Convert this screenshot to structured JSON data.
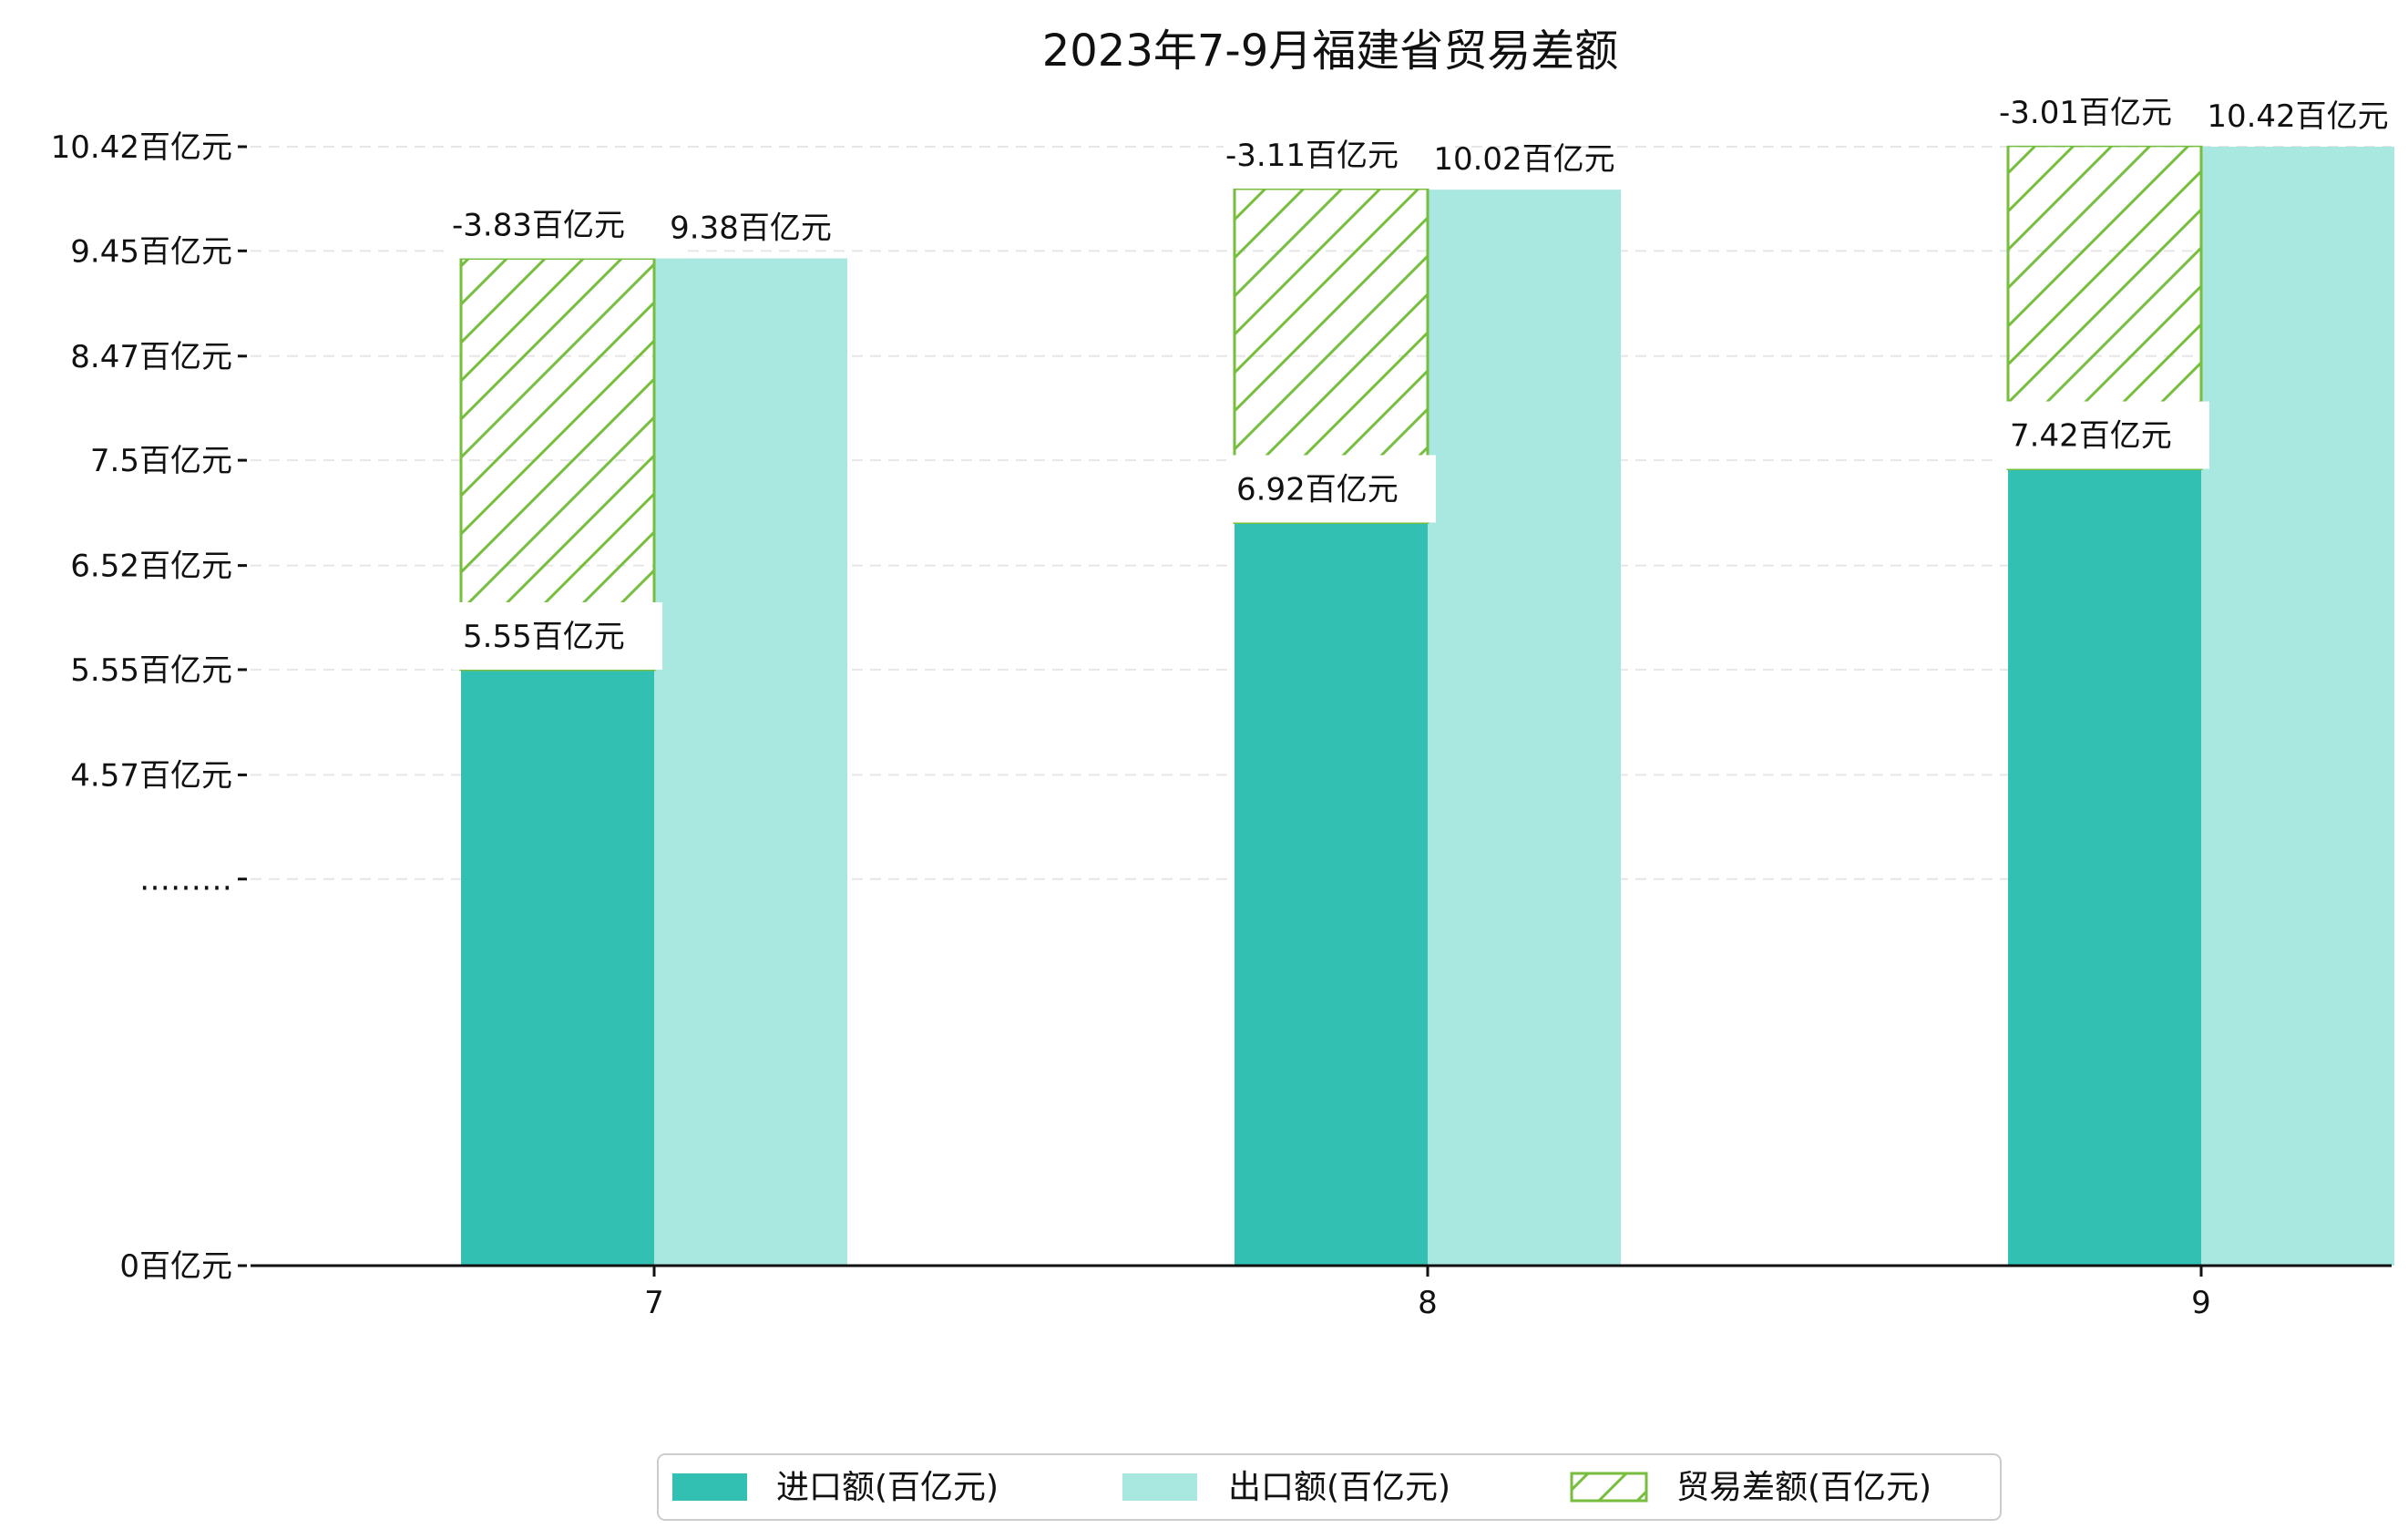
{
  "chart_data": {
    "type": "bar",
    "title": "2023年7-9月福建省贸易差额",
    "categories": [
      "7",
      "8",
      "9"
    ],
    "series": [
      {
        "name": "进口额(百亿元)",
        "values": [
          5.55,
          6.92,
          7.42
        ],
        "labels": [
          "5.55百亿元",
          "6.92百亿元",
          "7.42百亿元"
        ],
        "color": "#31c0b2"
      },
      {
        "name": "出口额(百亿元)",
        "values": [
          9.38,
          10.02,
          10.42
        ],
        "labels": [
          "9.38百亿元",
          "10.02百亿元",
          "10.42百亿元"
        ],
        "color": "#a9e7e1"
      },
      {
        "name": "贸易差额(百亿元)",
        "values": [
          -3.83,
          -3.11,
          -3.01
        ],
        "labels": [
          "-3.83百亿元",
          "-3.11百亿元",
          "-3.01百亿元"
        ],
        "color": "#77be3f"
      }
    ],
    "y_ticks": [
      {
        "value": 0,
        "label": "0百亿元"
      },
      {
        "value": 3.6,
        "label": "………"
      },
      {
        "value": 4.57,
        "label": "4.57百亿元"
      },
      {
        "value": 5.55,
        "label": "5.55百亿元"
      },
      {
        "value": 6.52,
        "label": "6.52百亿元"
      },
      {
        "value": 7.5,
        "label": "7.5百亿元"
      },
      {
        "value": 8.47,
        "label": "8.47百亿元"
      },
      {
        "value": 9.45,
        "label": "9.45百亿元"
      },
      {
        "value": 10.42,
        "label": "10.42百亿元"
      }
    ],
    "axis_break": {
      "below": 3.6,
      "above": 4.57
    },
    "ylim": [
      0,
      10.42
    ],
    "xlabel": "",
    "ylabel": "",
    "grid": "horizontal dashed",
    "legend_position": "bottom-center"
  }
}
